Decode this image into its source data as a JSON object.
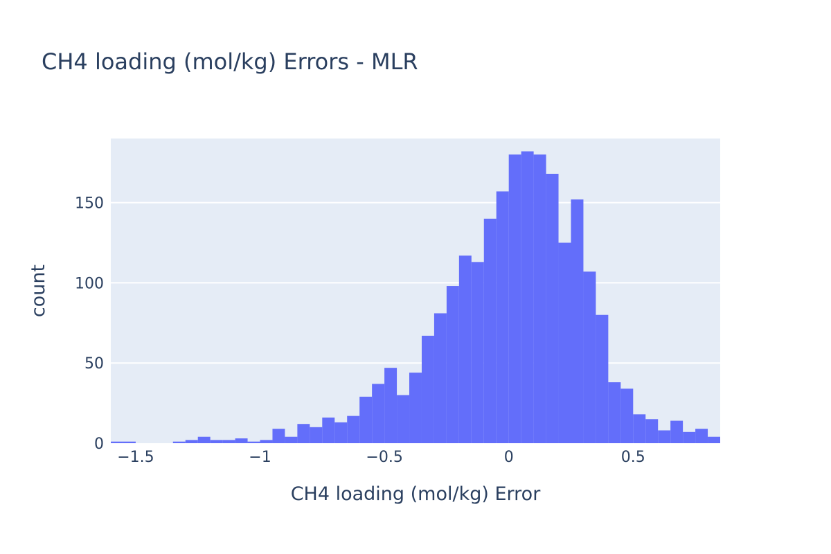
{
  "chart_data": {
    "type": "bar",
    "title": "CH4 loading (mol/kg) Errors - MLR",
    "xlabel": "CH4 loading (mol/kg) Error",
    "ylabel": "count",
    "xlim": [
      -1.6,
      0.85
    ],
    "ylim": [
      0,
      190
    ],
    "bin_width": 0.05,
    "bin_start": -1.6,
    "grid": true,
    "bar_color": "#636efa",
    "plot_bg_color": "#e5ecf6",
    "x_ticks": [
      {
        "value": -1.5,
        "label": "−1.5"
      },
      {
        "value": -1.0,
        "label": "−1"
      },
      {
        "value": -0.5,
        "label": "−0.5"
      },
      {
        "value": 0,
        "label": "0"
      },
      {
        "value": 0.5,
        "label": "0.5"
      }
    ],
    "y_ticks": [
      {
        "value": 0,
        "label": "0"
      },
      {
        "value": 50,
        "label": "50"
      },
      {
        "value": 100,
        "label": "100"
      },
      {
        "value": 150,
        "label": "150"
      }
    ],
    "values": [
      1,
      1,
      0,
      0,
      0,
      1,
      2,
      4,
      2,
      2,
      3,
      1,
      2,
      9,
      4,
      12,
      10,
      16,
      13,
      17,
      29,
      37,
      47,
      30,
      44,
      67,
      81,
      98,
      117,
      113,
      140,
      157,
      180,
      182,
      180,
      168,
      125,
      152,
      107,
      80,
      38,
      34,
      18,
      15,
      8,
      14,
      7,
      9,
      4
    ]
  }
}
